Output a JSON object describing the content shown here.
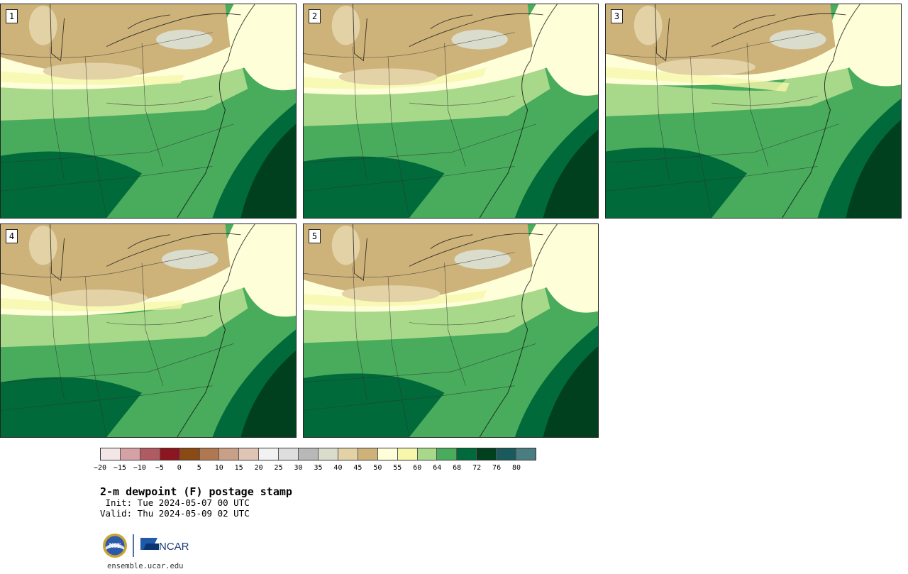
{
  "panels": [
    {
      "label": "1"
    },
    {
      "label": "2"
    },
    {
      "label": "3"
    },
    {
      "label": "4"
    },
    {
      "label": "5"
    }
  ],
  "colorbar": {
    "colors": [
      "#f3e6e6",
      "#d4a2a6",
      "#b05a62",
      "#8c1620",
      "#8a4a14",
      "#b07850",
      "#c8a088",
      "#e0c4b4",
      "#f2f2f2",
      "#dedede",
      "#b8b8b8",
      "#dadccc",
      "#e2d2a6",
      "#cdb27a",
      "#fefed8",
      "#f6f7ac",
      "#a8d88a",
      "#48ac5c",
      "#006a3a",
      "#00401f",
      "#1a5a5c",
      "#4a7c80"
    ],
    "ticks": [
      "−20",
      "−15",
      "−10",
      "−5",
      "0",
      "5",
      "10",
      "15",
      "20",
      "25",
      "30",
      "35",
      "40",
      "45",
      "50",
      "55",
      "60",
      "64",
      "68",
      "72",
      "76",
      "80"
    ]
  },
  "title": "2-m dewpoint (F) postage stamp",
  "init": " Init: Tue 2024-05-07 00 UTC",
  "valid": "Valid: Thu 2024-05-09 02 UTC",
  "logos": {
    "left": "NSF",
    "right": "NCAR"
  },
  "site": "ensemble.ucar.edu"
}
